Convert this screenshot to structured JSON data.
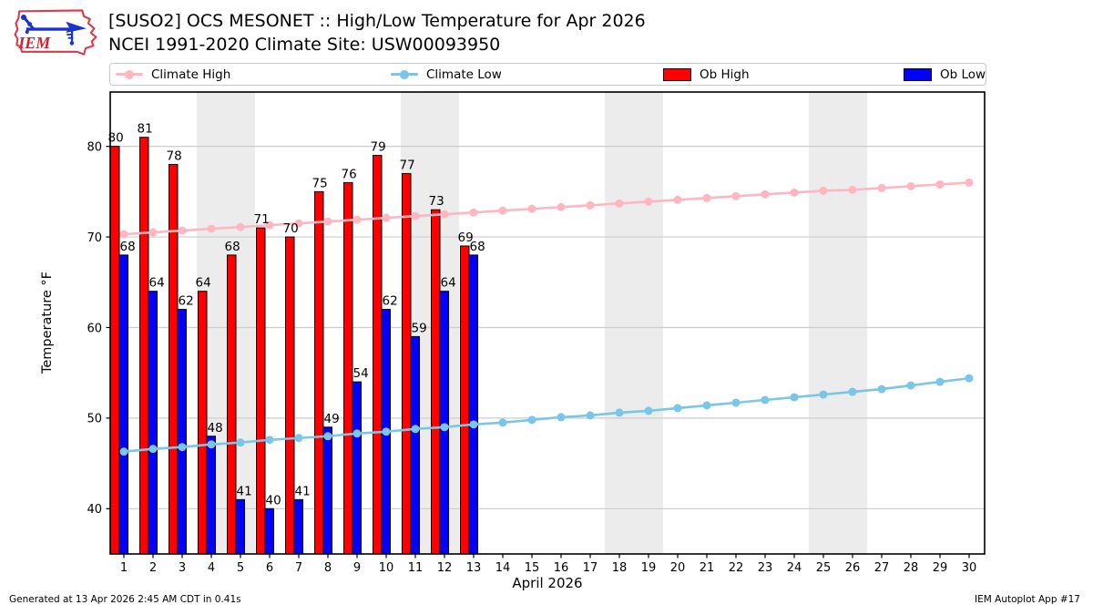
{
  "header": {
    "title_line1": "[SUSO2] OCS MESONET :: High/Low Temperature for Apr 2026",
    "title_line2": "NCEI 1991-2020 Climate Site: USW00093950",
    "logo_text": "IEM"
  },
  "colors": {
    "ob_high": "#ff0000",
    "ob_low": "#0000ff",
    "climate_high": "#ffb6c1",
    "climate_low": "#79c6e8",
    "weekend_band": "#ececec",
    "grid": "#cccccc",
    "frame": "#000000"
  },
  "legend": {
    "items": [
      {
        "label": "Climate High",
        "swatch": "line-dot",
        "color_key": "climate_high"
      },
      {
        "label": "Climate Low",
        "swatch": "line-dot",
        "color_key": "climate_low"
      },
      {
        "label": "Ob High",
        "swatch": "rect",
        "color_key": "ob_high"
      },
      {
        "label": "Ob Low",
        "swatch": "rect",
        "color_key": "ob_low"
      }
    ]
  },
  "chart_data": {
    "type": "bar",
    "title": "[SUSO2] OCS MESONET :: High/Low Temperature for Apr 2026",
    "subtitle": "NCEI 1991-2020 Climate Site: USW00093950",
    "xlabel": "April 2026",
    "ylabel": "Temperature °F",
    "ylim": [
      35,
      86
    ],
    "yticks": [
      40,
      50,
      60,
      70,
      80
    ],
    "xticks": [
      1,
      2,
      3,
      4,
      5,
      6,
      7,
      8,
      9,
      10,
      11,
      12,
      13,
      14,
      15,
      16,
      17,
      18,
      19,
      20,
      21,
      22,
      23,
      24,
      25,
      26,
      27,
      28,
      29,
      30
    ],
    "grid": "horizontal",
    "legend_position": "top",
    "weekend_bands": [
      [
        3.5,
        5.5
      ],
      [
        10.5,
        12.5
      ],
      [
        17.5,
        19.5
      ],
      [
        24.5,
        26.5
      ]
    ],
    "series": [
      {
        "name": "Ob High",
        "type": "bar",
        "color_key": "ob_high",
        "value_labels": true,
        "x": [
          1,
          2,
          3,
          4,
          5,
          6,
          7,
          8,
          9,
          10,
          11,
          12,
          13
        ],
        "values": [
          80,
          81,
          78,
          64,
          68,
          71,
          70,
          75,
          76,
          79,
          77,
          73,
          69
        ]
      },
      {
        "name": "Ob Low",
        "type": "bar",
        "color_key": "ob_low",
        "value_labels": true,
        "x": [
          1,
          2,
          3,
          4,
          5,
          6,
          7,
          8,
          9,
          10,
          11,
          12,
          13
        ],
        "values": [
          68,
          64,
          62,
          48,
          41,
          40,
          41,
          49,
          54,
          62,
          59,
          64,
          68
        ]
      },
      {
        "name": "Climate High",
        "type": "line",
        "color_key": "climate_high",
        "x": [
          1,
          2,
          3,
          4,
          5,
          6,
          7,
          8,
          9,
          10,
          11,
          12,
          13,
          14,
          15,
          16,
          17,
          18,
          19,
          20,
          21,
          22,
          23,
          24,
          25,
          26,
          27,
          28,
          29,
          30
        ],
        "values": [
          70.3,
          70.5,
          70.7,
          70.9,
          71.1,
          71.3,
          71.5,
          71.7,
          71.9,
          72.1,
          72.3,
          72.5,
          72.7,
          72.9,
          73.1,
          73.3,
          73.5,
          73.7,
          73.9,
          74.1,
          74.3,
          74.5,
          74.7,
          74.9,
          75.1,
          75.2,
          75.4,
          75.6,
          75.8,
          76.0
        ]
      },
      {
        "name": "Climate Low",
        "type": "line",
        "color_key": "climate_low",
        "x": [
          1,
          2,
          3,
          4,
          5,
          6,
          7,
          8,
          9,
          10,
          11,
          12,
          13,
          14,
          15,
          16,
          17,
          18,
          19,
          20,
          21,
          22,
          23,
          24,
          25,
          26,
          27,
          28,
          29,
          30
        ],
        "values": [
          46.3,
          46.6,
          46.8,
          47.1,
          47.3,
          47.6,
          47.8,
          48.0,
          48.3,
          48.5,
          48.8,
          49.0,
          49.3,
          49.5,
          49.8,
          50.1,
          50.3,
          50.6,
          50.8,
          51.1,
          51.4,
          51.7,
          52.0,
          52.3,
          52.6,
          52.9,
          53.2,
          53.6,
          54.0,
          54.4
        ]
      }
    ]
  },
  "footer": {
    "left": "Generated at 13 Apr 2026 2:45 AM CDT in 0.41s",
    "right": "IEM Autoplot App #17"
  }
}
